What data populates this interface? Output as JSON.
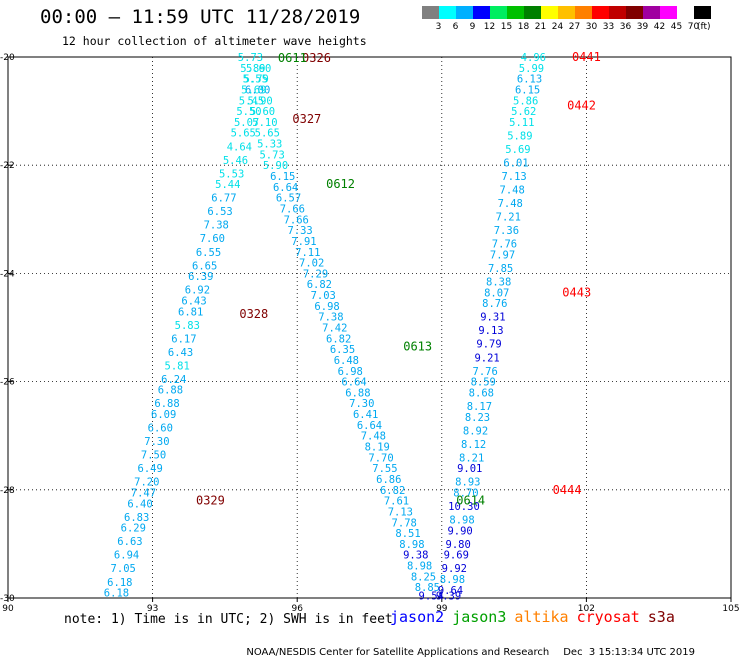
{
  "header": {
    "title": "00:00 – 11:59 UTC 11/28/2019",
    "subtitle": "12 hour collection of altimeter wave heights"
  },
  "colorbar": {
    "unit": "(ft)",
    "bins": [
      {
        "color": "#808080",
        "label": "3"
      },
      {
        "color": "#00ffff",
        "label": "6"
      },
      {
        "color": "#00b0ff",
        "label": "9"
      },
      {
        "color": "#0000ff",
        "label": "12"
      },
      {
        "color": "#00ee60",
        "label": "15"
      },
      {
        "color": "#00c000",
        "label": "18"
      },
      {
        "color": "#008000",
        "label": "21"
      },
      {
        "color": "#ffff00",
        "label": "24"
      },
      {
        "color": "#ffc000",
        "label": "27"
      },
      {
        "color": "#ff8000",
        "label": "30"
      },
      {
        "color": "#ff0000",
        "label": "33"
      },
      {
        "color": "#c00000",
        "label": "36"
      },
      {
        "color": "#800000",
        "label": "39"
      },
      {
        "color": "#a000a0",
        "label": "42"
      },
      {
        "color": "#ff00ff",
        "label": "45"
      },
      {
        "color": "#ffffff",
        "label": "70"
      },
      {
        "color": "#000000",
        "label": ""
      }
    ]
  },
  "footer": {
    "note": "note: 1) Time is in UTC; 2) SWH is in feet",
    "credit": "NOAA/NESDIS Center for Satellite Applications and Research",
    "generated": "Dec  3 15:13:34 UTC 2019"
  },
  "satellites": [
    {
      "name": "jason2",
      "color": "#0000ff"
    },
    {
      "name": "jason3",
      "color": "#00a000"
    },
    {
      "name": "altika",
      "color": "#ff8000"
    },
    {
      "name": "cryosat",
      "color": "#ff0000"
    },
    {
      "name": "s3a",
      "color": "#800000"
    }
  ],
  "chart_data": {
    "type": "scatter",
    "xlim": [
      90,
      105
    ],
    "ylim": [
      -30,
      -20
    ],
    "x_ticks": [
      {
        "value": 90,
        "label": "90"
      },
      {
        "value": 93,
        "label": "93"
      },
      {
        "value": 96,
        "label": "96"
      },
      {
        "value": 99,
        "label": "99"
      },
      {
        "value": 102,
        "label": "102"
      },
      {
        "value": 105,
        "label": "105"
      }
    ],
    "y_ticks": [
      {
        "value": -20,
        "label": "-20"
      },
      {
        "value": -22,
        "label": "-22"
      },
      {
        "value": -24,
        "label": "-24"
      },
      {
        "value": -26,
        "label": "-26"
      },
      {
        "value": -28,
        "label": "-28"
      },
      {
        "value": -30,
        "label": "-30"
      }
    ],
    "gridlines": "dotted",
    "pass_labels": [
      {
        "text": "0326",
        "x": 96.1,
        "y": -20.02,
        "color": "#800000"
      },
      {
        "text": "0327",
        "x": 95.9,
        "y": -21.15,
        "color": "#800000"
      },
      {
        "text": "0328",
        "x": 94.8,
        "y": -24.75,
        "color": "#800000"
      },
      {
        "text": "0329",
        "x": 93.9,
        "y": -28.2,
        "color": "#800000"
      },
      {
        "text": "0611",
        "x": 95.6,
        "y": -20.02,
        "color": "#008000"
      },
      {
        "text": "0612",
        "x": 96.6,
        "y": -22.35,
        "color": "#008000"
      },
      {
        "text": "0613",
        "x": 98.2,
        "y": -25.35,
        "color": "#008000"
      },
      {
        "text": "0614",
        "x": 99.3,
        "y": -28.2,
        "color": "#008000"
      },
      {
        "text": "0441",
        "x": 101.7,
        "y": -20.0,
        "color": "#ff0000"
      },
      {
        "text": "0442",
        "x": 101.6,
        "y": -20.9,
        "color": "#ff0000"
      },
      {
        "text": "0443",
        "x": 101.5,
        "y": -24.35,
        "color": "#ff0000"
      },
      {
        "text": "0444",
        "x": 101.3,
        "y": -28.0,
        "color": "#ff0000"
      }
    ],
    "series": [
      {
        "name": "0326",
        "color_scale": "swh",
        "points": [
          {
            "x": 95.03,
            "y": -20.0,
            "v": "5.73"
          },
          {
            "x": 95.08,
            "y": -20.2,
            "v": "5.89"
          },
          {
            "x": 95.13,
            "y": -20.4,
            "v": "5.55"
          },
          {
            "x": 95.18,
            "y": -20.6,
            "v": "6.00"
          },
          {
            "x": 95.23,
            "y": -20.8,
            "v": "5.90"
          },
          {
            "x": 95.28,
            "y": -21.0,
            "v": "5.60"
          },
          {
            "x": 95.33,
            "y": -21.2,
            "v": "5.10"
          },
          {
            "x": 95.38,
            "y": -21.4,
            "v": "5.65"
          },
          {
            "x": 95.43,
            "y": -21.6,
            "v": "5.33"
          },
          {
            "x": 95.48,
            "y": -21.8,
            "v": "5.73"
          },
          {
            "x": 95.55,
            "y": -22.0,
            "v": "5.90"
          }
        ]
      },
      {
        "name": "0327",
        "color_scale": "swh",
        "points": [
          {
            "x": 95.2,
            "y": -20.2,
            "v": "5.60"
          },
          {
            "x": 95.15,
            "y": -20.4,
            "v": "5.79"
          },
          {
            "x": 95.1,
            "y": -20.6,
            "v": "5.69"
          },
          {
            "x": 95.05,
            "y": -20.8,
            "v": "5.45"
          },
          {
            "x": 95.0,
            "y": -21.0,
            "v": "5.50"
          },
          {
            "x": 94.95,
            "y": -21.2,
            "v": "5.07"
          },
          {
            "x": 94.88,
            "y": -21.4,
            "v": "5.65"
          },
          {
            "x": 94.8,
            "y": -21.65,
            "v": "4.64"
          },
          {
            "x": 94.72,
            "y": -21.9,
            "v": "5.46"
          },
          {
            "x": 94.64,
            "y": -22.15,
            "v": "5.53"
          },
          {
            "x": 94.56,
            "y": -22.35,
            "v": "5.44"
          },
          {
            "x": 94.48,
            "y": -22.6,
            "v": "6.77"
          },
          {
            "x": 94.4,
            "y": -22.85,
            "v": "6.53"
          },
          {
            "x": 94.32,
            "y": -23.1,
            "v": "7.38"
          },
          {
            "x": 94.24,
            "y": -23.35,
            "v": "7.60"
          },
          {
            "x": 94.16,
            "y": -23.6,
            "v": "6.55"
          },
          {
            "x": 94.08,
            "y": -23.85,
            "v": "6.65"
          },
          {
            "x": 94.0,
            "y": -24.05,
            "v": "6.39"
          },
          {
            "x": 93.93,
            "y": -24.3,
            "v": "6.92"
          },
          {
            "x": 93.86,
            "y": -24.5,
            "v": "6.43"
          },
          {
            "x": 93.79,
            "y": -24.7,
            "v": "6.81"
          },
          {
            "x": 93.72,
            "y": -24.95,
            "v": "5.83"
          },
          {
            "x": 93.65,
            "y": -25.2,
            "v": "6.17"
          },
          {
            "x": 93.58,
            "y": -25.45,
            "v": "6.43"
          },
          {
            "x": 93.51,
            "y": -25.7,
            "v": "5.81"
          },
          {
            "x": 93.44,
            "y": -25.95,
            "v": "6.24"
          },
          {
            "x": 93.37,
            "y": -26.15,
            "v": "6.88"
          },
          {
            "x": 93.3,
            "y": -26.4,
            "v": "6.88"
          },
          {
            "x": 93.23,
            "y": -26.6,
            "v": "6.09"
          },
          {
            "x": 93.16,
            "y": -26.85,
            "v": "6.60"
          },
          {
            "x": 93.09,
            "y": -27.1,
            "v": "7.30"
          },
          {
            "x": 93.02,
            "y": -27.35,
            "v": "7.50"
          },
          {
            "x": 92.95,
            "y": -27.6,
            "v": "6.49"
          },
          {
            "x": 92.88,
            "y": -27.85,
            "v": "7.20"
          },
          {
            "x": 92.81,
            "y": -28.05,
            "v": "7.47"
          },
          {
            "x": 92.74,
            "y": -28.25,
            "v": "6.40"
          },
          {
            "x": 92.67,
            "y": -28.5,
            "v": "6.83"
          },
          {
            "x": 92.6,
            "y": -28.7,
            "v": "6.29"
          },
          {
            "x": 92.53,
            "y": -28.95,
            "v": "6.63"
          },
          {
            "x": 92.46,
            "y": -29.2,
            "v": "6.94"
          },
          {
            "x": 92.39,
            "y": -29.45,
            "v": "7.05"
          },
          {
            "x": 92.32,
            "y": -29.7,
            "v": "6.18"
          },
          {
            "x": 92.25,
            "y": -29.9,
            "v": "6.18"
          }
        ]
      },
      {
        "name": "0612",
        "color_scale": "swh",
        "points": [
          {
            "x": 95.7,
            "y": -22.2,
            "v": "6.15"
          },
          {
            "x": 95.76,
            "y": -22.4,
            "v": "6.64"
          },
          {
            "x": 95.82,
            "y": -22.6,
            "v": "6.57"
          },
          {
            "x": 95.9,
            "y": -22.8,
            "v": "7.66"
          },
          {
            "x": 95.98,
            "y": -23.0,
            "v": "7.66"
          },
          {
            "x": 96.06,
            "y": -23.2,
            "v": "7.33"
          },
          {
            "x": 96.14,
            "y": -23.4,
            "v": "7.91"
          },
          {
            "x": 96.22,
            "y": -23.6,
            "v": "7.11"
          },
          {
            "x": 96.3,
            "y": -23.8,
            "v": "7.02"
          },
          {
            "x": 96.38,
            "y": -24.0,
            "v": "7.29"
          },
          {
            "x": 96.46,
            "y": -24.2,
            "v": "6.82"
          },
          {
            "x": 96.54,
            "y": -24.4,
            "v": "7.03"
          },
          {
            "x": 96.62,
            "y": -24.6,
            "v": "6.98"
          },
          {
            "x": 96.7,
            "y": -24.8,
            "v": "7.38"
          },
          {
            "x": 96.78,
            "y": -25.0,
            "v": "7.42"
          },
          {
            "x": 96.86,
            "y": -25.2,
            "v": "6.82"
          },
          {
            "x": 96.94,
            "y": -25.4,
            "v": "6.35"
          },
          {
            "x": 97.02,
            "y": -25.6,
            "v": "6.48"
          },
          {
            "x": 97.1,
            "y": -25.8,
            "v": "6.98"
          },
          {
            "x": 97.18,
            "y": -26.0,
            "v": "6.64"
          },
          {
            "x": 97.26,
            "y": -26.2,
            "v": "6.88"
          },
          {
            "x": 97.34,
            "y": -26.4,
            "v": "7.30"
          },
          {
            "x": 97.42,
            "y": -26.6,
            "v": "6.41"
          },
          {
            "x": 97.5,
            "y": -26.8,
            "v": "6.64"
          },
          {
            "x": 97.58,
            "y": -27.0,
            "v": "7.48"
          },
          {
            "x": 97.66,
            "y": -27.2,
            "v": "8.19"
          },
          {
            "x": 97.74,
            "y": -27.4,
            "v": "7.70"
          },
          {
            "x": 97.82,
            "y": -27.6,
            "v": "7.55"
          },
          {
            "x": 97.9,
            "y": -27.8,
            "v": "6.86"
          },
          {
            "x": 97.98,
            "y": -28.0,
            "v": "6.82"
          },
          {
            "x": 98.06,
            "y": -28.2,
            "v": "7.61"
          },
          {
            "x": 98.14,
            "y": -28.4,
            "v": "7.13"
          },
          {
            "x": 98.22,
            "y": -28.6,
            "v": "7.78"
          },
          {
            "x": 98.3,
            "y": -28.8,
            "v": "8.51"
          },
          {
            "x": 98.38,
            "y": -29.0,
            "v": "8.98"
          },
          {
            "x": 98.46,
            "y": -29.2,
            "v": "9.38"
          },
          {
            "x": 98.54,
            "y": -29.4,
            "v": "8.98"
          },
          {
            "x": 98.62,
            "y": -29.6,
            "v": "8.25"
          },
          {
            "x": 98.7,
            "y": -29.8,
            "v": "8.85"
          },
          {
            "x": 98.78,
            "y": -29.95,
            "v": "9.54"
          }
        ]
      },
      {
        "name": "0441",
        "color_scale": "swh",
        "points": [
          {
            "x": 100.9,
            "y": -20.0,
            "v": "4.96"
          },
          {
            "x": 100.86,
            "y": -20.2,
            "v": "5.99"
          },
          {
            "x": 100.82,
            "y": -20.4,
            "v": "6.13"
          },
          {
            "x": 100.78,
            "y": -20.6,
            "v": "6.15"
          },
          {
            "x": 100.74,
            "y": -20.8,
            "v": "5.86"
          },
          {
            "x": 100.7,
            "y": -21.0,
            "v": "5.62"
          },
          {
            "x": 100.66,
            "y": -21.2,
            "v": "5.11"
          },
          {
            "x": 100.62,
            "y": -21.45,
            "v": "5.89"
          },
          {
            "x": 100.58,
            "y": -21.7,
            "v": "5.69"
          },
          {
            "x": 100.54,
            "y": -21.95,
            "v": "6.01"
          },
          {
            "x": 100.5,
            "y": -22.2,
            "v": "7.13"
          },
          {
            "x": 100.46,
            "y": -22.45,
            "v": "7.48"
          },
          {
            "x": 100.42,
            "y": -22.7,
            "v": "7.48"
          },
          {
            "x": 100.38,
            "y": -22.95,
            "v": "7.21"
          },
          {
            "x": 100.34,
            "y": -23.2,
            "v": "7.36"
          },
          {
            "x": 100.3,
            "y": -23.45,
            "v": "7.76"
          },
          {
            "x": 100.26,
            "y": -23.65,
            "v": "7.97"
          },
          {
            "x": 100.22,
            "y": -23.9,
            "v": "7.85"
          },
          {
            "x": 100.18,
            "y": -24.15,
            "v": "8.38"
          },
          {
            "x": 100.14,
            "y": -24.35,
            "v": "8.07"
          },
          {
            "x": 100.1,
            "y": -24.55,
            "v": "8.76"
          },
          {
            "x": 100.06,
            "y": -24.8,
            "v": "9.31"
          },
          {
            "x": 100.02,
            "y": -25.05,
            "v": "9.13"
          },
          {
            "x": 99.98,
            "y": -25.3,
            "v": "9.79"
          },
          {
            "x": 99.94,
            "y": -25.55,
            "v": "9.21"
          },
          {
            "x": 99.9,
            "y": -25.8,
            "v": "7.76"
          },
          {
            "x": 99.86,
            "y": -26.0,
            "v": "8.59"
          },
          {
            "x": 99.82,
            "y": -26.2,
            "v": "8.68"
          },
          {
            "x": 99.78,
            "y": -26.45,
            "v": "8.17"
          },
          {
            "x": 99.74,
            "y": -26.65,
            "v": "8.23"
          },
          {
            "x": 99.7,
            "y": -26.9,
            "v": "8.92"
          },
          {
            "x": 99.66,
            "y": -27.15,
            "v": "8.12"
          },
          {
            "x": 99.62,
            "y": -27.4,
            "v": "8.21"
          },
          {
            "x": 99.58,
            "y": -27.6,
            "v": "9.01"
          },
          {
            "x": 99.54,
            "y": -27.85,
            "v": "8.93"
          },
          {
            "x": 99.5,
            "y": -28.05,
            "v": "8.70"
          },
          {
            "x": 99.46,
            "y": -28.3,
            "v": "10.30"
          },
          {
            "x": 99.42,
            "y": -28.55,
            "v": "8.98"
          },
          {
            "x": 99.38,
            "y": -28.75,
            "v": "9.90"
          },
          {
            "x": 99.34,
            "y": -29.0,
            "v": "9.80"
          },
          {
            "x": 99.3,
            "y": -29.2,
            "v": "9.69"
          },
          {
            "x": 99.26,
            "y": -29.45,
            "v": "9.92"
          },
          {
            "x": 99.22,
            "y": -29.65,
            "v": "8.98"
          },
          {
            "x": 99.18,
            "y": -29.85,
            "v": "9.64"
          },
          {
            "x": 99.14,
            "y": -29.95,
            "v": "9.39"
          }
        ]
      }
    ]
  }
}
